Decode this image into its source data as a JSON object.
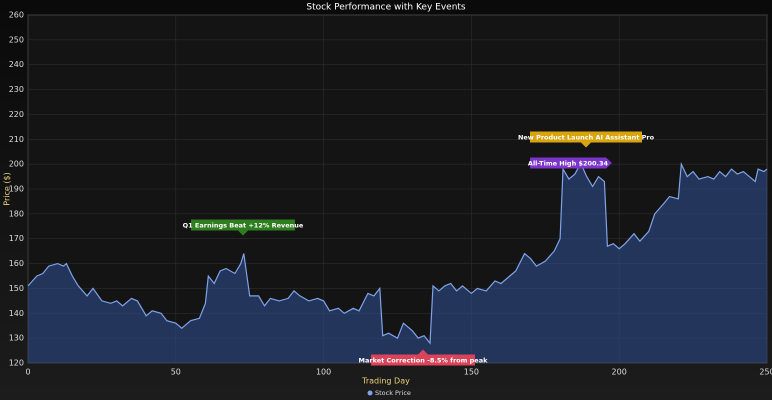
{
  "chart_data": {
    "type": "area",
    "title": "Stock Performance with Key Events",
    "x_label": "Trading Day",
    "y_label": "Price ($)",
    "x": [
      0,
      3,
      5,
      7,
      10,
      12,
      13,
      15,
      17,
      20,
      22,
      25,
      28,
      30,
      32,
      35,
      37,
      40,
      42,
      45,
      47,
      50,
      52,
      55,
      58,
      60,
      61,
      63,
      65,
      67,
      70,
      72,
      73,
      75,
      78,
      80,
      82,
      85,
      88,
      90,
      92,
      95,
      98,
      100,
      102,
      105,
      107,
      110,
      112,
      115,
      117,
      119,
      120,
      122,
      125,
      127,
      130,
      132,
      134,
      136,
      137,
      139,
      141,
      143,
      145,
      147,
      150,
      152,
      155,
      158,
      160,
      163,
      165,
      168,
      170,
      172,
      175,
      178,
      180,
      181,
      183,
      185,
      187,
      189,
      191,
      193,
      195,
      196,
      198,
      200,
      202,
      205,
      207,
      210,
      212,
      215,
      217,
      220,
      221,
      223,
      225,
      227,
      230,
      232,
      234,
      236,
      238,
      240,
      242,
      244,
      246,
      247,
      249,
      250
    ],
    "series": [
      {
        "name": "Stock Price",
        "color": "#7fa3e8",
        "values": [
          151,
          155,
          156,
          159,
          160,
          159,
          160,
          155,
          151,
          147,
          150,
          145,
          144,
          145,
          143,
          146,
          145,
          139,
          141,
          140,
          137,
          136,
          134,
          137,
          138,
          144,
          155,
          152,
          157,
          158,
          156,
          160,
          164,
          147,
          147,
          143,
          146,
          145,
          146,
          149,
          147,
          145,
          146,
          145,
          141,
          142,
          140,
          142,
          141,
          148,
          147,
          150,
          131,
          132,
          130,
          136,
          133,
          130,
          131,
          128,
          151,
          149,
          151,
          152,
          149,
          151,
          148,
          150,
          149,
          153,
          152,
          155,
          157,
          164,
          162,
          159,
          161,
          165,
          170,
          198,
          194,
          196,
          200.34,
          195,
          191,
          195,
          193,
          167,
          168,
          166,
          168,
          172,
          169,
          173,
          180,
          184,
          187,
          186,
          200,
          195,
          197,
          194,
          195,
          194,
          197,
          195,
          198,
          196,
          197,
          195,
          193,
          198,
          197,
          198
        ]
      }
    ],
    "xlim": [
      0,
      250
    ],
    "xticks": [
      0,
      50,
      100,
      150,
      200,
      250
    ],
    "ylim": [
      120,
      260
    ],
    "yticks": [
      120,
      130,
      140,
      150,
      160,
      170,
      180,
      190,
      200,
      210,
      220,
      230,
      240,
      250,
      260
    ],
    "grid": true,
    "legend": "bottom",
    "annotations": [
      {
        "text": "Q1 Earnings Beat +12% Revenue",
        "color": "#2e7d1f"
      },
      {
        "text": "New Product Launch AI Assistant Pro",
        "color": "#d9a40b"
      },
      {
        "text": "All-Time High $200.34",
        "color": "#7b35c9"
      },
      {
        "text": "Market Correction -8.5% from peak",
        "color": "#d9445a"
      }
    ]
  }
}
